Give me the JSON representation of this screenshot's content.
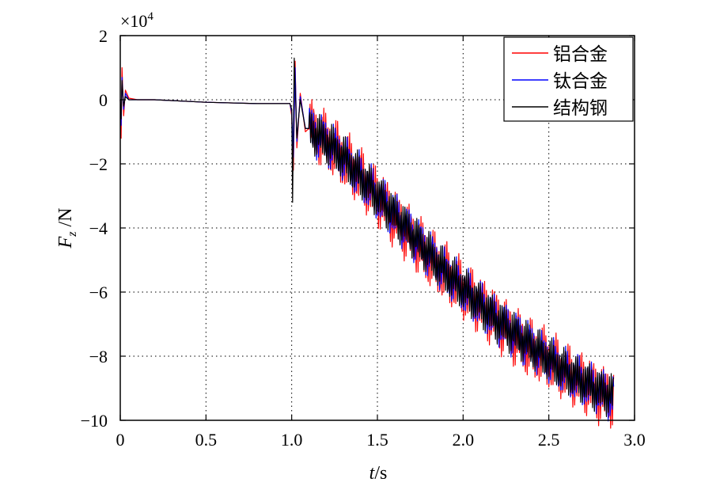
{
  "chart_data": {
    "type": "line",
    "xlabel": {
      "italic": "t",
      "rest": "/s"
    },
    "ylabel": {
      "italic": "F",
      "subscript": "z",
      "rest": " /N"
    },
    "exponent_label": {
      "base": "×10",
      "power": "4"
    },
    "xlim": [
      0,
      3.0
    ],
    "ylim": [
      -10,
      2
    ],
    "y_scale_factor": 10000,
    "x_ticks": [
      "0",
      "0.5",
      "1.0",
      "1.5",
      "2.0",
      "2.5",
      "3.0"
    ],
    "x_tick_values": [
      0,
      0.5,
      1.0,
      1.5,
      2.0,
      2.5,
      3.0
    ],
    "y_ticks": [
      "2",
      "0",
      "−2",
      "−4",
      "−6",
      "−8",
      "−10"
    ],
    "y_tick_values": [
      2,
      0,
      -2,
      -4,
      -6,
      -8,
      -10
    ],
    "grid": "dotted",
    "legend_position": "top-right",
    "series": [
      {
        "name": "铝合金",
        "color": "#ff0000",
        "points": [
          [
            0,
            0
          ],
          [
            0.005,
            -1.2
          ],
          [
            0.01,
            1.0
          ],
          [
            0.02,
            -0.5
          ],
          [
            0.03,
            0.3
          ],
          [
            0.05,
            0.05
          ],
          [
            0.1,
            0.0
          ],
          [
            0.2,
            0.0
          ],
          [
            0.5,
            -0.08
          ],
          [
            0.8,
            -0.12
          ],
          [
            0.99,
            -0.12
          ],
          [
            1.0,
            -0.5
          ],
          [
            1.01,
            -2.2
          ],
          [
            1.02,
            1.2
          ],
          [
            1.03,
            -1.5
          ],
          [
            1.05,
            0.2
          ],
          [
            1.08,
            -1.0
          ],
          [
            1.1,
            -0.9
          ],
          [
            1.2,
            -1.3
          ],
          [
            1.3,
            -1.8
          ],
          [
            1.4,
            -2.4
          ],
          [
            1.5,
            -3.0
          ],
          [
            1.6,
            -3.7
          ],
          [
            1.7,
            -4.3
          ],
          [
            1.8,
            -4.9
          ],
          [
            1.9,
            -5.4
          ],
          [
            2.0,
            -5.9
          ],
          [
            2.1,
            -6.4
          ],
          [
            2.2,
            -6.9
          ],
          [
            2.3,
            -7.4
          ],
          [
            2.4,
            -7.8
          ],
          [
            2.5,
            -8.1
          ],
          [
            2.6,
            -8.5
          ],
          [
            2.7,
            -8.8
          ],
          [
            2.8,
            -9.2
          ],
          [
            2.88,
            -9.3
          ]
        ],
        "oscillation_amplitude": 0.75
      },
      {
        "name": "钛合金",
        "color": "#0000ff",
        "points": [
          [
            0,
            0
          ],
          [
            0.005,
            -0.8
          ],
          [
            0.01,
            0.7
          ],
          [
            0.02,
            -0.3
          ],
          [
            0.03,
            0.2
          ],
          [
            0.05,
            0.0
          ],
          [
            0.1,
            0.0
          ],
          [
            0.2,
            0.0
          ],
          [
            0.5,
            -0.08
          ],
          [
            0.8,
            -0.12
          ],
          [
            0.99,
            -0.12
          ],
          [
            1.0,
            -0.4
          ],
          [
            1.01,
            -1.8
          ],
          [
            1.02,
            1.0
          ],
          [
            1.03,
            -1.3
          ],
          [
            1.05,
            0.1
          ],
          [
            1.08,
            -0.9
          ],
          [
            1.1,
            -0.9
          ],
          [
            1.2,
            -1.3
          ],
          [
            1.3,
            -1.8
          ],
          [
            1.4,
            -2.4
          ],
          [
            1.5,
            -3.0
          ],
          [
            1.6,
            -3.6
          ],
          [
            1.7,
            -4.2
          ],
          [
            1.8,
            -4.8
          ],
          [
            1.9,
            -5.4
          ],
          [
            2.0,
            -5.9
          ],
          [
            2.1,
            -6.4
          ],
          [
            2.2,
            -6.9
          ],
          [
            2.3,
            -7.3
          ],
          [
            2.4,
            -7.7
          ],
          [
            2.5,
            -8.1
          ],
          [
            2.6,
            -8.5
          ],
          [
            2.7,
            -8.8
          ],
          [
            2.8,
            -9.1
          ],
          [
            2.88,
            -9.3
          ]
        ],
        "oscillation_amplitude": 0.6
      },
      {
        "name": "结构钢",
        "color": "#000000",
        "points": [
          [
            0,
            0
          ],
          [
            0.005,
            -0.6
          ],
          [
            0.01,
            0.6
          ],
          [
            0.02,
            -0.2
          ],
          [
            0.03,
            0.1
          ],
          [
            0.05,
            0.0
          ],
          [
            0.1,
            0.0
          ],
          [
            0.2,
            0.0
          ],
          [
            0.5,
            -0.08
          ],
          [
            0.8,
            -0.12
          ],
          [
            0.99,
            -0.12
          ],
          [
            1.0,
            -0.3
          ],
          [
            1.005,
            -3.2
          ],
          [
            1.015,
            1.3
          ],
          [
            1.03,
            -1.2
          ],
          [
            1.05,
            0.0
          ],
          [
            1.08,
            -0.9
          ],
          [
            1.1,
            -0.9
          ],
          [
            1.2,
            -1.3
          ],
          [
            1.3,
            -1.8
          ],
          [
            1.4,
            -2.4
          ],
          [
            1.5,
            -3.0
          ],
          [
            1.6,
            -3.6
          ],
          [
            1.7,
            -4.2
          ],
          [
            1.8,
            -4.8
          ],
          [
            1.9,
            -5.4
          ],
          [
            2.0,
            -5.9
          ],
          [
            2.1,
            -6.4
          ],
          [
            2.2,
            -6.9
          ],
          [
            2.3,
            -7.3
          ],
          [
            2.4,
            -7.7
          ],
          [
            2.5,
            -8.1
          ],
          [
            2.6,
            -8.5
          ],
          [
            2.7,
            -8.8
          ],
          [
            2.8,
            -9.1
          ],
          [
            2.88,
            -9.2
          ]
        ],
        "oscillation_amplitude": 0.55
      }
    ]
  }
}
